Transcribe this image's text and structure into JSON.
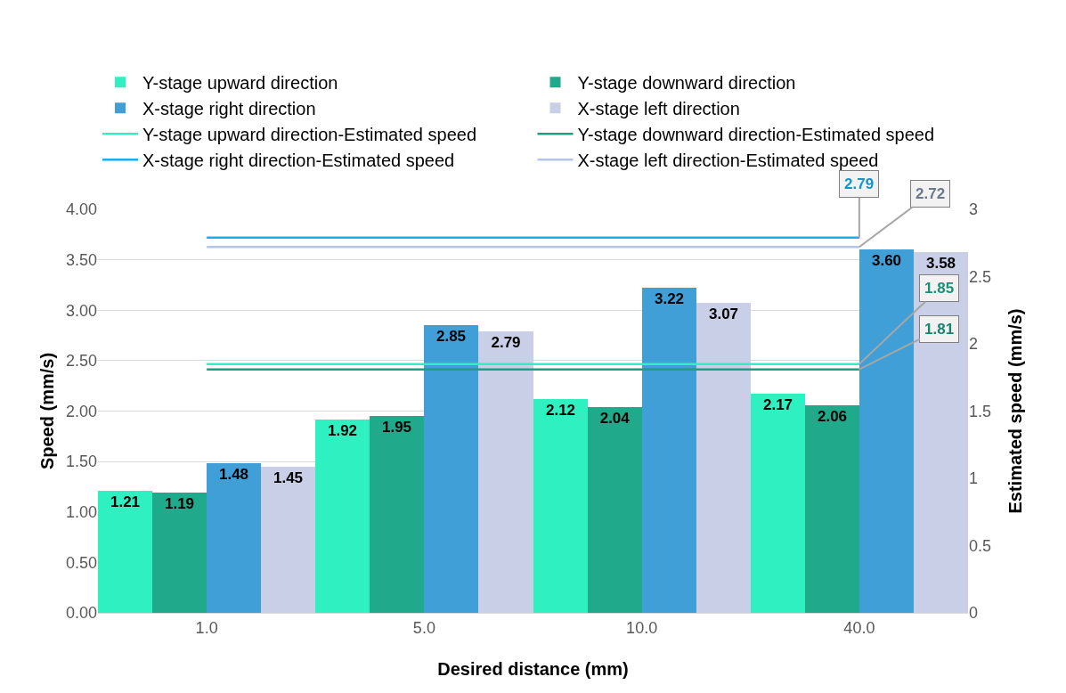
{
  "chart_data": {
    "type": "bar",
    "xlabel": "Desired distance (mm)",
    "ylabel": "Speed (mm/s)",
    "y2label": "Estimated speed (mm/s)",
    "categories": [
      "1.0",
      "5.0",
      "10.0",
      "40.0"
    ],
    "series": [
      {
        "name": "Y-stage upward direction",
        "color": "#2ef0c0",
        "values": [
          1.21,
          1.92,
          2.12,
          2.17
        ],
        "value_labels": [
          "1.21",
          "1.92",
          "2.12",
          "2.17"
        ]
      },
      {
        "name": "Y-stage downward direction",
        "color": "#20a98a",
        "values": [
          1.19,
          1.95,
          2.04,
          2.06
        ],
        "value_labels": [
          "1.19",
          "1.95",
          "2.04",
          "2.06"
        ]
      },
      {
        "name": "X-stage right direction",
        "color": "#3f9fd6",
        "values": [
          1.48,
          2.85,
          3.22,
          3.6
        ],
        "value_labels": [
          "1.48",
          "2.85",
          "3.22",
          "3.60"
        ]
      },
      {
        "name": "X-stage left direction",
        "color": "#c8cfe6",
        "values": [
          1.45,
          2.79,
          3.07,
          3.58
        ],
        "value_labels": [
          "1.45",
          "2.79",
          "3.07",
          "3.58"
        ]
      },
      {
        "name": "Y-stage upward direction-Estimated speed",
        "type": "line",
        "axis": "y2",
        "color": "#2af2c6",
        "values": [
          1.85,
          1.85,
          1.85,
          1.85
        ],
        "value_labels": [
          null,
          null,
          null,
          "1.85"
        ]
      },
      {
        "name": "Y-stage downward direction-Estimated speed",
        "type": "line",
        "axis": "y2",
        "color": "#1c9e82",
        "values": [
          1.81,
          1.81,
          1.81,
          1.81
        ],
        "value_labels": [
          null,
          null,
          null,
          "1.81"
        ]
      },
      {
        "name": "X-stage right direction-Estimated speed",
        "type": "line",
        "axis": "y2",
        "color": "#18aeea",
        "values": [
          2.79,
          2.79,
          2.79,
          2.79
        ],
        "value_labels": [
          null,
          null,
          null,
          "2.79"
        ]
      },
      {
        "name": "X-stage left direction-Estimated speed",
        "type": "line",
        "axis": "y2",
        "color": "#b4c6e7",
        "values": [
          2.72,
          2.72,
          2.72,
          2.72
        ],
        "value_labels": [
          null,
          null,
          null,
          "2.72"
        ]
      }
    ],
    "ylim": [
      0,
      4
    ],
    "yticks": [
      {
        "value": 0,
        "label": "0.00"
      },
      {
        "value": 0.5,
        "label": "0.50"
      },
      {
        "value": 1,
        "label": "1.00"
      },
      {
        "value": 1.5,
        "label": "1.50"
      },
      {
        "value": 2,
        "label": "2.00"
      },
      {
        "value": 2.5,
        "label": "2.50"
      },
      {
        "value": 3,
        "label": "3.00"
      },
      {
        "value": 3.5,
        "label": "3.50"
      },
      {
        "value": 4,
        "label": "4.00"
      }
    ],
    "y2lim": [
      0,
      3
    ],
    "y2ticks": [
      0,
      0.5,
      1,
      1.5,
      2,
      2.5,
      3
    ],
    "grid": "y",
    "legend": "top",
    "marker": "none",
    "line_style": "solid"
  }
}
